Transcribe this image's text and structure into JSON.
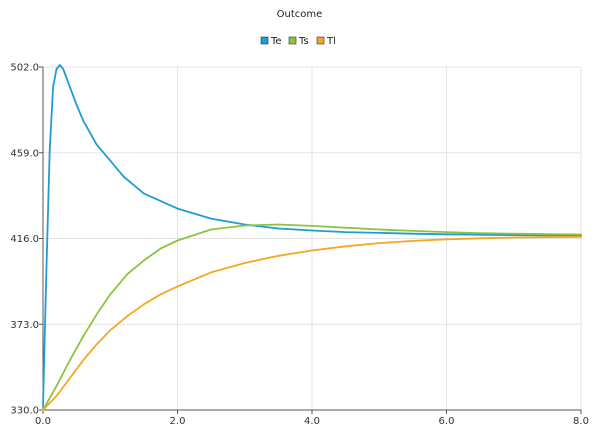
{
  "chart_data": {
    "type": "line",
    "title": "Outcome",
    "xlabel": "",
    "ylabel": "",
    "xlim": [
      0.0,
      8.0
    ],
    "ylim": [
      330.0,
      502.0
    ],
    "x_ticks": [
      "0.0",
      "2.0",
      "4.0",
      "6.0",
      "8.0"
    ],
    "y_ticks": [
      "330.0",
      "373.0",
      "416.0",
      "459.0",
      "502.0"
    ],
    "grid": true,
    "legend_position": "top-center",
    "series": [
      {
        "name": "Te",
        "color": "#1f9bd7",
        "x": [
          0.0,
          0.05,
          0.1,
          0.15,
          0.2,
          0.25,
          0.3,
          0.4,
          0.5,
          0.6,
          0.8,
          1.0,
          1.2,
          1.5,
          2.0,
          2.5,
          3.0,
          3.5,
          4.0,
          4.5,
          5.0,
          5.5,
          6.0,
          6.5,
          7.0,
          7.5,
          8.0
        ],
        "values": [
          332.0,
          400.0,
          460.0,
          492.0,
          501.0,
          503.0,
          501.0,
          492.0,
          483.0,
          475.0,
          463.0,
          455.0,
          447.0,
          438.5,
          431.0,
          426.0,
          423.0,
          421.0,
          420.0,
          419.2,
          418.8,
          418.4,
          418.1,
          417.9,
          417.7,
          417.6,
          417.5
        ]
      },
      {
        "name": "Ts",
        "color": "#8cc43f",
        "x": [
          0.0,
          0.2,
          0.4,
          0.6,
          0.8,
          1.0,
          1.25,
          1.5,
          1.75,
          2.0,
          2.5,
          3.0,
          3.5,
          4.0,
          4.5,
          5.0,
          5.5,
          6.0,
          6.5,
          7.0,
          7.5,
          8.0
        ],
        "values": [
          330.0,
          342.0,
          355.0,
          367.0,
          378.0,
          388.0,
          398.0,
          405.0,
          411.0,
          415.0,
          420.5,
          422.5,
          423.0,
          422.3,
          421.4,
          420.5,
          419.8,
          419.2,
          418.7,
          418.4,
          418.2,
          418.0
        ]
      },
      {
        "name": "Tl",
        "color": "#f5a623",
        "x": [
          0.0,
          0.2,
          0.4,
          0.6,
          0.8,
          1.0,
          1.25,
          1.5,
          1.75,
          2.0,
          2.5,
          3.0,
          3.5,
          4.0,
          4.5,
          5.0,
          5.5,
          6.0,
          6.5,
          7.0,
          7.5,
          8.0
        ],
        "values": [
          330.0,
          337.0,
          346.0,
          355.0,
          363.0,
          370.0,
          377.0,
          383.0,
          388.0,
          392.0,
          399.0,
          403.7,
          407.3,
          410.0,
          412.1,
          413.7,
          414.8,
          415.6,
          416.1,
          416.5,
          416.7,
          416.8
        ]
      }
    ]
  }
}
